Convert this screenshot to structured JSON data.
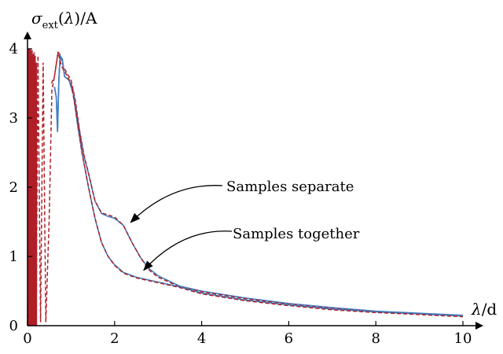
{
  "chart_data": {
    "type": "line",
    "ylabel": "σ_ext(λ)/A",
    "xlabel": "λ/d",
    "xlim": [
      0,
      10
    ],
    "ylim": [
      0,
      4
    ],
    "xticks": [
      "0",
      "2",
      "4",
      "6",
      "8",
      "10"
    ],
    "yticks": [
      "0",
      "1",
      "2",
      "3",
      "4"
    ],
    "grid": false,
    "colors": {
      "solid": "#3f7fc0",
      "dashed": "#b01e28"
    },
    "series": [
      {
        "label": "Samples separate",
        "solid": [
          [
            0.62,
            3.45
          ],
          [
            0.66,
            3.3
          ],
          [
            0.69,
            2.8
          ],
          [
            0.72,
            3.55
          ],
          [
            0.75,
            3.9
          ],
          [
            0.8,
            3.85
          ],
          [
            0.85,
            3.6
          ],
          [
            0.95,
            3.55
          ],
          [
            1.05,
            3.4
          ],
          [
            1.2,
            2.8
          ],
          [
            1.3,
            2.45
          ],
          [
            1.4,
            2.2
          ],
          [
            1.55,
            1.8
          ],
          [
            1.7,
            1.62
          ],
          [
            1.85,
            1.58
          ],
          [
            2.0,
            1.55
          ],
          [
            2.2,
            1.45
          ],
          [
            2.4,
            1.2
          ],
          [
            2.6,
            0.98
          ],
          [
            2.8,
            0.82
          ],
          [
            3.0,
            0.72
          ],
          [
            3.5,
            0.57
          ],
          [
            4.0,
            0.5
          ],
          [
            5.0,
            0.4
          ],
          [
            6.0,
            0.32
          ],
          [
            7.0,
            0.26
          ],
          [
            8.0,
            0.21
          ],
          [
            9.0,
            0.18
          ],
          [
            10.0,
            0.15
          ]
        ],
        "dashed": [
          [
            0.55,
            3.5
          ],
          [
            0.62,
            3.6
          ],
          [
            0.7,
            3.95
          ],
          [
            0.75,
            3.92
          ],
          [
            0.82,
            3.75
          ],
          [
            0.9,
            3.65
          ],
          [
            1.0,
            3.55
          ],
          [
            1.1,
            3.25
          ],
          [
            1.2,
            2.8
          ],
          [
            1.3,
            2.45
          ],
          [
            1.4,
            2.2
          ],
          [
            1.55,
            1.8
          ],
          [
            1.7,
            1.63
          ],
          [
            1.85,
            1.6
          ],
          [
            2.0,
            1.57
          ],
          [
            2.2,
            1.45
          ],
          [
            2.4,
            1.2
          ],
          [
            2.6,
            0.98
          ],
          [
            2.8,
            0.8
          ],
          [
            3.0,
            0.7
          ],
          [
            3.5,
            0.56
          ],
          [
            4.0,
            0.49
          ],
          [
            5.0,
            0.39
          ],
          [
            6.0,
            0.31
          ],
          [
            7.0,
            0.25
          ],
          [
            8.0,
            0.2
          ],
          [
            9.0,
            0.17
          ],
          [
            10.0,
            0.14
          ]
        ]
      },
      {
        "label": "Samples together",
        "solid": [
          [
            0.62,
            3.45
          ],
          [
            0.66,
            3.3
          ],
          [
            0.69,
            2.8
          ],
          [
            0.72,
            3.55
          ],
          [
            0.75,
            3.9
          ],
          [
            0.8,
            3.85
          ],
          [
            0.85,
            3.6
          ],
          [
            0.95,
            3.55
          ],
          [
            1.05,
            3.35
          ],
          [
            1.15,
            2.9
          ],
          [
            1.25,
            2.5
          ],
          [
            1.4,
            2.0
          ],
          [
            1.55,
            1.55
          ],
          [
            1.7,
            1.2
          ],
          [
            1.85,
            1.0
          ],
          [
            2.0,
            0.88
          ],
          [
            2.2,
            0.77
          ],
          [
            2.5,
            0.7
          ],
          [
            3.0,
            0.63
          ],
          [
            3.5,
            0.56
          ],
          [
            4.0,
            0.47
          ],
          [
            5.0,
            0.37
          ],
          [
            6.0,
            0.3
          ],
          [
            7.0,
            0.24
          ],
          [
            8.0,
            0.2
          ],
          [
            9.0,
            0.17
          ],
          [
            10.0,
            0.14
          ]
        ],
        "dashed": [
          [
            0.0,
            0.02
          ],
          [
            0.05,
            4.0
          ],
          [
            0.1,
            0.3
          ],
          [
            0.15,
            3.95
          ],
          [
            0.2,
            0.1
          ],
          [
            0.24,
            3.9
          ],
          [
            0.3,
            0.05
          ],
          [
            0.36,
            3.8
          ],
          [
            0.42,
            0.05
          ],
          [
            0.5,
            1.6
          ],
          [
            0.56,
            3.4
          ],
          [
            0.62,
            3.6
          ],
          [
            0.7,
            3.95
          ],
          [
            0.78,
            3.75
          ],
          [
            0.9,
            3.62
          ],
          [
            1.0,
            3.5
          ],
          [
            1.1,
            3.15
          ],
          [
            1.25,
            2.5
          ],
          [
            1.4,
            2.0
          ],
          [
            1.55,
            1.55
          ],
          [
            1.7,
            1.2
          ],
          [
            1.85,
            1.0
          ],
          [
            2.0,
            0.87
          ],
          [
            2.2,
            0.76
          ],
          [
            2.5,
            0.69
          ],
          [
            3.0,
            0.62
          ],
          [
            3.5,
            0.55
          ],
          [
            4.0,
            0.46
          ],
          [
            5.0,
            0.36
          ],
          [
            6.0,
            0.29
          ],
          [
            7.0,
            0.23
          ],
          [
            8.0,
            0.19
          ],
          [
            9.0,
            0.16
          ],
          [
            10.0,
            0.13
          ]
        ]
      }
    ],
    "spikes": [
      [
        0.02,
        4.0
      ],
      [
        0.04,
        3.95
      ],
      [
        0.06,
        4.0
      ],
      [
        0.08,
        3.9
      ],
      [
        0.1,
        3.98
      ],
      [
        0.12,
        3.92
      ],
      [
        0.14,
        3.85
      ],
      [
        0.17,
        3.9
      ],
      [
        0.2,
        3.8
      ]
    ],
    "annotations": [
      {
        "text": "Samples separate",
        "target_x": 2.3,
        "target_y": 1.47
      },
      {
        "text": "Samples together",
        "target_x": 2.6,
        "target_y": 0.78
      }
    ]
  }
}
